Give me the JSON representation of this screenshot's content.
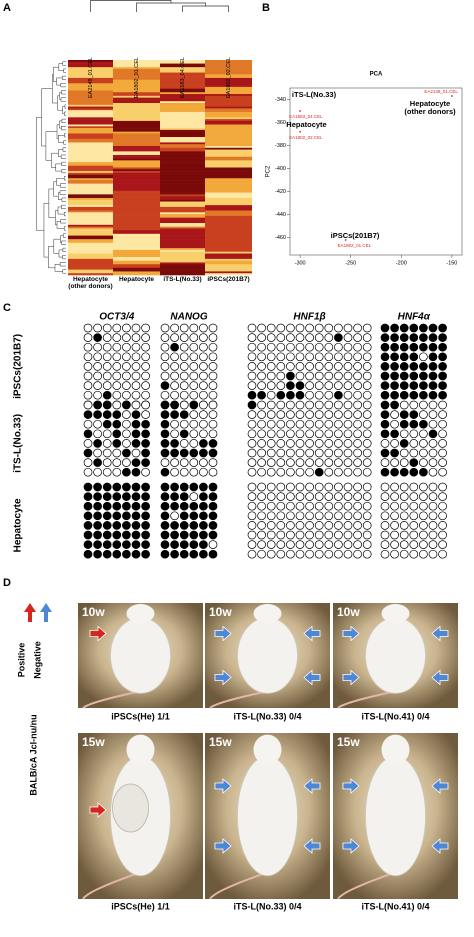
{
  "panel_labels": [
    "A",
    "B",
    "C",
    "D"
  ],
  "heatmap": {
    "sample_ids": [
      "EA2149_01.CEL",
      "EA1802_01.CEL",
      "EA1583_04.CEL",
      "EA1802_02.CEL"
    ],
    "group_labels": [
      "Hepatocyte (other donors)",
      "Hepatocyte",
      "iTS-L(No.33)",
      "iPSCs(201B7)"
    ]
  },
  "chart_data": {
    "type": "scatter",
    "title": "PCA",
    "y_label": "PC2",
    "x": [
      -150,
      -300,
      -300,
      -255
    ],
    "values": [
      -337,
      -350,
      -368,
      -462
    ],
    "point_labels": [
      "EA2149_01.CEL",
      "EA1583_04.CEL",
      "EA1802_02.CEL",
      "EA1802_01.CEL"
    ],
    "group_labels": [
      "Hepatocyte (other donors)",
      "iTS-L(No.33)",
      "Hepatocyte",
      "iPSCs(201B7)"
    ],
    "color": "#d62728",
    "xlim": [
      -310,
      -140
    ],
    "ylim": [
      -475,
      -330
    ],
    "xticks": [
      -300,
      -250,
      -200,
      -150
    ],
    "yticks": [
      -340,
      -360,
      -380,
      -400,
      -420,
      -440,
      -460
    ]
  },
  "methylation": {
    "genes": [
      "OCT3/4",
      "NANOG",
      "HNF1β",
      "HNF4α"
    ],
    "samples": [
      "iPSCs(201B7)",
      "iTS-L(No.33)",
      "Hepatocyte"
    ],
    "grids": [
      [
        [
          "0000000",
          "0100000",
          "0000000",
          "0000000",
          "0000000",
          "0000000",
          "0000000",
          "0010000",
          "0000000"
        ],
        [
          "000000",
          "000000",
          "010000",
          "000000",
          "000000",
          "000000",
          "100000",
          "000000",
          "000000"
        ],
        [
          "0000000000000",
          "0000000001000",
          "0000000000000",
          "0000000000000",
          "0000000000000",
          "0000100000000",
          "0000110000000",
          "1101110001000"
        ],
        [
          "1111111",
          "1111111",
          "1111111",
          "1111011",
          "1111111",
          "1111111",
          "1111111",
          "1111111"
        ]
      ],
      [
        [
          "0110100",
          "1111010",
          "0011011",
          "1001011",
          "0101011",
          "1000101",
          "0100011",
          "0000110"
        ],
        [
          "110100",
          "111000",
          "100000",
          "101000",
          "110011",
          "111111",
          "000000",
          "100000"
        ],
        [
          "1000000000000",
          "0000000000000",
          "0000000000000",
          "0000000000000",
          "0000000000000",
          "0000000000000",
          "0000000000000",
          "0000000100000"
        ],
        [
          "1100000",
          "1011000",
          "1011100",
          "1100010",
          "0010000",
          "1100000",
          "0001000",
          "1111100"
        ]
      ],
      [
        [
          "1111111",
          "1111111",
          "1111111",
          "1111111",
          "1111111",
          "1111111",
          "1111111",
          "1111111"
        ],
        [
          "111111",
          "111011",
          "111111",
          "101111",
          "111111",
          "111111",
          "111110",
          "111111"
        ],
        [
          "0000000000000",
          "0000000000000",
          "0000000000000",
          "0000000000000",
          "0000000000000",
          "0000000000000",
          "0000000000000",
          "0000000000000"
        ],
        [
          "0000000",
          "0000000",
          "0000000",
          "0000000",
          "0000000",
          "0000000",
          "0000000",
          "0000000"
        ]
      ]
    ]
  },
  "mouse_assay": {
    "legend": [
      "Positive",
      "Negative"
    ],
    "strain": "BALB/cA Jcl-nu/nu",
    "timepoints": [
      "10w",
      "15w"
    ],
    "captions": [
      [
        "iPSCs(He) 1/1",
        "iTS-L(No.33) 0/4",
        "iTS-L(No.41) 0/4"
      ],
      [
        "iPSCs(He) 1/1",
        "iTS-L(No.33) 0/4",
        "iTS-L(No.41) 0/4"
      ]
    ]
  }
}
